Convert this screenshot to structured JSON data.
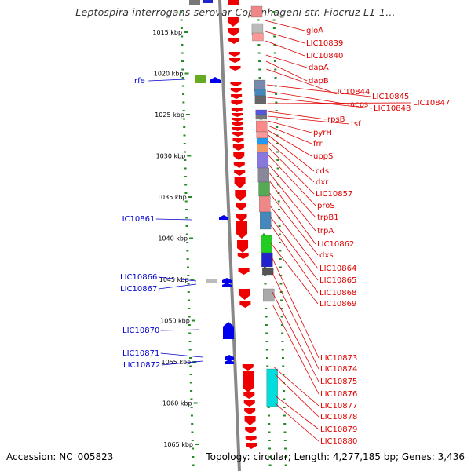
{
  "title": "Leptospira interrogans serovar Copenhageni str. Fiocruz L1-1...",
  "footer": {
    "accession": "Accession: NC_005823",
    "topology": "Topology: circular; Length: 4,277,185 bp; Genes: 3,436"
  },
  "colors": {
    "forward_gene": "#ee0000",
    "reverse_gene": "#0000ee",
    "tick": "#228b22",
    "backbone": "#888888",
    "label_forward": "#e00000",
    "label_reverse": "#0000cc"
  },
  "kbp_ticks": [
    "1015 kbp",
    "1020 kbp",
    "1025 kbp",
    "1030 kbp",
    "1035 kbp",
    "1040 kbp",
    "1045 kbp",
    "1050 kbp",
    "1055 kbp",
    "1060 kbp",
    "1065 kbp"
  ],
  "forward_labels": [
    "gloA",
    "LIC10839",
    "LIC10840",
    "dapA",
    "dapB",
    "LIC10844",
    "LIC10845",
    "acps",
    "LIC10848",
    "LIC10847",
    "rpsB",
    "tsf",
    "pyrH",
    "frr",
    "uppS",
    "cds",
    "dxr",
    "LIC10857",
    "proS",
    "trpB1",
    "trpA",
    "LIC10862",
    "dxs",
    "LIC10864",
    "LIC10865",
    "LIC10868",
    "LIC10869",
    "LIC10873",
    "LIC10874",
    "LIC10875",
    "LIC10876",
    "LIC10877",
    "LIC10878",
    "LIC10879",
    "LIC10880"
  ],
  "reverse_labels": [
    "rfe",
    "LIC10861",
    "LIC10866",
    "LIC10867",
    "LIC10870",
    "LIC10871",
    "LIC10872"
  ]
}
